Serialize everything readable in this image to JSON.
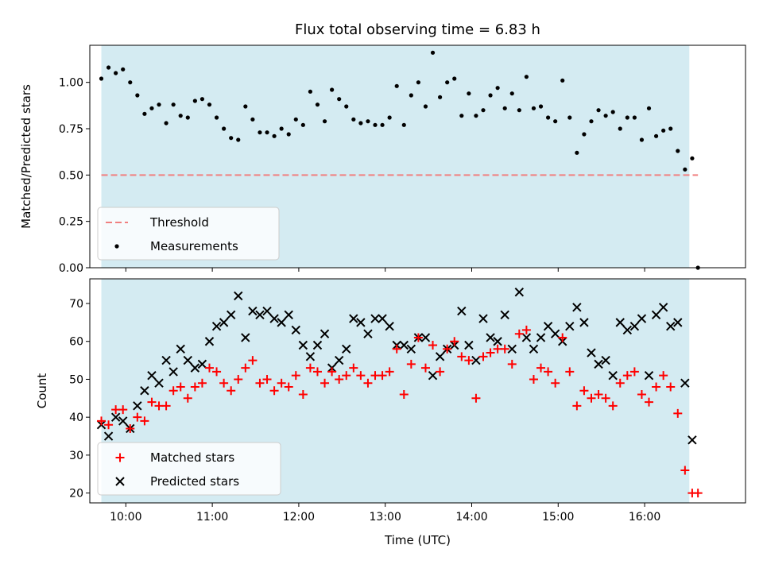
{
  "colors": {
    "shade": "#add8e6",
    "threshold": "#f08080",
    "measurement": "#000000",
    "matched": "#ff0000",
    "predicted": "#000000"
  },
  "chart_data": [
    {
      "type": "scatter",
      "title": "Flux total observing time = 6.83 h",
      "xlabel": "",
      "ylabel": "Matched/Predicted stars",
      "xlim": [
        "09:35",
        "17:10"
      ],
      "ylim": [
        0,
        1.2
      ],
      "yticks": [
        "0.00",
        "0.25",
        "0.50",
        "0.75",
        "1.00"
      ],
      "shaded_span": [
        "09:43",
        "16:31"
      ],
      "legend": {
        "position": "lower-left",
        "entries": [
          "Threshold",
          "Measurements"
        ]
      },
      "threshold": {
        "name": "Threshold",
        "y": 0.5,
        "x": [
          "09:43",
          "16:37"
        ]
      },
      "series": [
        {
          "name": "Measurements",
          "points": [
            [
              "09:43",
              1.02
            ],
            [
              "09:48",
              1.08
            ],
            [
              "09:53",
              1.05
            ],
            [
              "09:58",
              1.07
            ],
            [
              "10:03",
              1.0
            ],
            [
              "10:08",
              0.93
            ],
            [
              "10:13",
              0.83
            ],
            [
              "10:18",
              0.86
            ],
            [
              "10:23",
              0.88
            ],
            [
              "10:28",
              0.78
            ],
            [
              "10:33",
              0.88
            ],
            [
              "10:38",
              0.82
            ],
            [
              "10:43",
              0.81
            ],
            [
              "10:48",
              0.9
            ],
            [
              "10:53",
              0.91
            ],
            [
              "10:58",
              0.88
            ],
            [
              "11:03",
              0.81
            ],
            [
              "11:08",
              0.75
            ],
            [
              "11:13",
              0.7
            ],
            [
              "11:18",
              0.69
            ],
            [
              "11:23",
              0.87
            ],
            [
              "11:28",
              0.8
            ],
            [
              "11:33",
              0.73
            ],
            [
              "11:38",
              0.73
            ],
            [
              "11:43",
              0.71
            ],
            [
              "11:48",
              0.75
            ],
            [
              "11:53",
              0.72
            ],
            [
              "11:58",
              0.8
            ],
            [
              "12:03",
              0.77
            ],
            [
              "12:08",
              0.95
            ],
            [
              "12:13",
              0.88
            ],
            [
              "12:18",
              0.79
            ],
            [
              "12:23",
              0.96
            ],
            [
              "12:28",
              0.91
            ],
            [
              "12:33",
              0.87
            ],
            [
              "12:38",
              0.8
            ],
            [
              "12:43",
              0.78
            ],
            [
              "12:48",
              0.79
            ],
            [
              "12:53",
              0.77
            ],
            [
              "12:58",
              0.77
            ],
            [
              "13:03",
              0.81
            ],
            [
              "13:08",
              0.98
            ],
            [
              "13:13",
              0.77
            ],
            [
              "13:18",
              0.93
            ],
            [
              "13:23",
              1.0
            ],
            [
              "13:28",
              0.87
            ],
            [
              "13:33",
              1.16
            ],
            [
              "13:38",
              0.92
            ],
            [
              "13:43",
              1.0
            ],
            [
              "13:48",
              1.02
            ],
            [
              "13:53",
              0.82
            ],
            [
              "13:58",
              0.94
            ],
            [
              "14:03",
              0.82
            ],
            [
              "14:08",
              0.85
            ],
            [
              "14:13",
              0.93
            ],
            [
              "14:18",
              0.97
            ],
            [
              "14:23",
              0.86
            ],
            [
              "14:28",
              0.94
            ],
            [
              "14:33",
              0.85
            ],
            [
              "14:38",
              1.03
            ],
            [
              "14:43",
              0.86
            ],
            [
              "14:48",
              0.87
            ],
            [
              "14:53",
              0.81
            ],
            [
              "14:58",
              0.79
            ],
            [
              "15:03",
              1.01
            ],
            [
              "15:08",
              0.81
            ],
            [
              "15:13",
              0.62
            ],
            [
              "15:18",
              0.72
            ],
            [
              "15:23",
              0.79
            ],
            [
              "15:28",
              0.85
            ],
            [
              "15:33",
              0.82
            ],
            [
              "15:38",
              0.84
            ],
            [
              "15:43",
              0.75
            ],
            [
              "15:48",
              0.81
            ],
            [
              "15:53",
              0.81
            ],
            [
              "15:58",
              0.69
            ],
            [
              "16:03",
              0.86
            ],
            [
              "16:08",
              0.71
            ],
            [
              "16:13",
              0.74
            ],
            [
              "16:18",
              0.75
            ],
            [
              "16:23",
              0.63
            ],
            [
              "16:28",
              0.53
            ],
            [
              "16:33",
              0.59
            ],
            [
              "16:37",
              0.0
            ]
          ]
        }
      ]
    },
    {
      "type": "scatter",
      "title": "",
      "xlabel": "Time (UTC)",
      "ylabel": "Count",
      "xlim": [
        "09:35",
        "17:10"
      ],
      "ylim": [
        17.4,
        76.5
      ],
      "xticks": [
        "10:00",
        "11:00",
        "12:00",
        "13:00",
        "14:00",
        "15:00",
        "16:00"
      ],
      "yticks": [
        "20",
        "30",
        "40",
        "50",
        "60",
        "70"
      ],
      "shaded_span": [
        "09:43",
        "16:31"
      ],
      "legend": {
        "position": "lower-left",
        "entries": [
          "Matched stars",
          "Predicted stars"
        ]
      },
      "categories": [
        "09:43",
        "09:48",
        "09:53",
        "09:58",
        "10:03",
        "10:08",
        "10:13",
        "10:18",
        "10:23",
        "10:28",
        "10:33",
        "10:38",
        "10:43",
        "10:48",
        "10:53",
        "10:58",
        "11:03",
        "11:08",
        "11:13",
        "11:18",
        "11:23",
        "11:28",
        "11:33",
        "11:38",
        "11:43",
        "11:48",
        "11:53",
        "11:58",
        "12:03",
        "12:08",
        "12:13",
        "12:18",
        "12:23",
        "12:28",
        "12:33",
        "12:38",
        "12:43",
        "12:48",
        "12:53",
        "12:58",
        "13:03",
        "13:08",
        "13:13",
        "13:18",
        "13:23",
        "13:28",
        "13:33",
        "13:38",
        "13:43",
        "13:48",
        "13:53",
        "13:58",
        "14:03",
        "14:08",
        "14:13",
        "14:18",
        "14:23",
        "14:28",
        "14:33",
        "14:38",
        "14:43",
        "14:48",
        "14:53",
        "14:58",
        "15:03",
        "15:08",
        "15:13",
        "15:18",
        "15:23",
        "15:28",
        "15:33",
        "15:38",
        "15:43",
        "15:48",
        "15:53",
        "15:58",
        "16:03",
        "16:08",
        "16:13",
        "16:18",
        "16:23",
        "16:28",
        "16:33",
        "16:37"
      ],
      "series": [
        {
          "name": "Matched stars",
          "values": [
            39,
            38,
            42,
            42,
            37,
            40,
            39,
            44,
            43,
            43,
            47,
            48,
            45,
            48,
            49,
            53,
            52,
            49,
            47,
            50,
            53,
            55,
            49,
            50,
            47,
            49,
            48,
            51,
            46,
            53,
            52,
            49,
            52,
            50,
            51,
            53,
            51,
            49,
            51,
            51,
            52,
            58,
            46,
            54,
            61,
            53,
            59,
            52,
            58,
            60,
            56,
            55,
            45,
            56,
            57,
            58,
            58,
            54,
            62,
            63,
            50,
            53,
            52,
            49,
            61,
            52,
            43,
            47,
            45,
            46,
            45,
            43,
            49,
            51,
            52,
            46,
            44,
            48,
            51,
            48,
            41,
            26,
            20,
            20
          ]
        },
        {
          "name": "Predicted stars",
          "values": [
            38,
            35,
            40,
            39,
            37,
            43,
            47,
            51,
            49,
            55,
            52,
            58,
            55,
            53,
            54,
            60,
            64,
            65,
            67,
            72,
            61,
            68,
            67,
            68,
            66,
            65,
            67,
            63,
            59,
            56,
            59,
            62,
            53,
            55,
            58,
            66,
            65,
            62,
            66,
            66,
            64,
            59,
            59,
            58,
            61,
            61,
            51,
            56,
            58,
            59,
            68,
            59,
            55,
            66,
            61,
            60,
            67,
            58,
            73,
            61,
            58,
            61,
            64,
            62,
            60,
            64,
            69,
            65,
            57,
            54,
            55,
            51,
            65,
            63,
            64,
            66,
            51,
            67,
            69,
            64,
            65,
            49,
            34,
            null
          ]
        }
      ]
    }
  ]
}
